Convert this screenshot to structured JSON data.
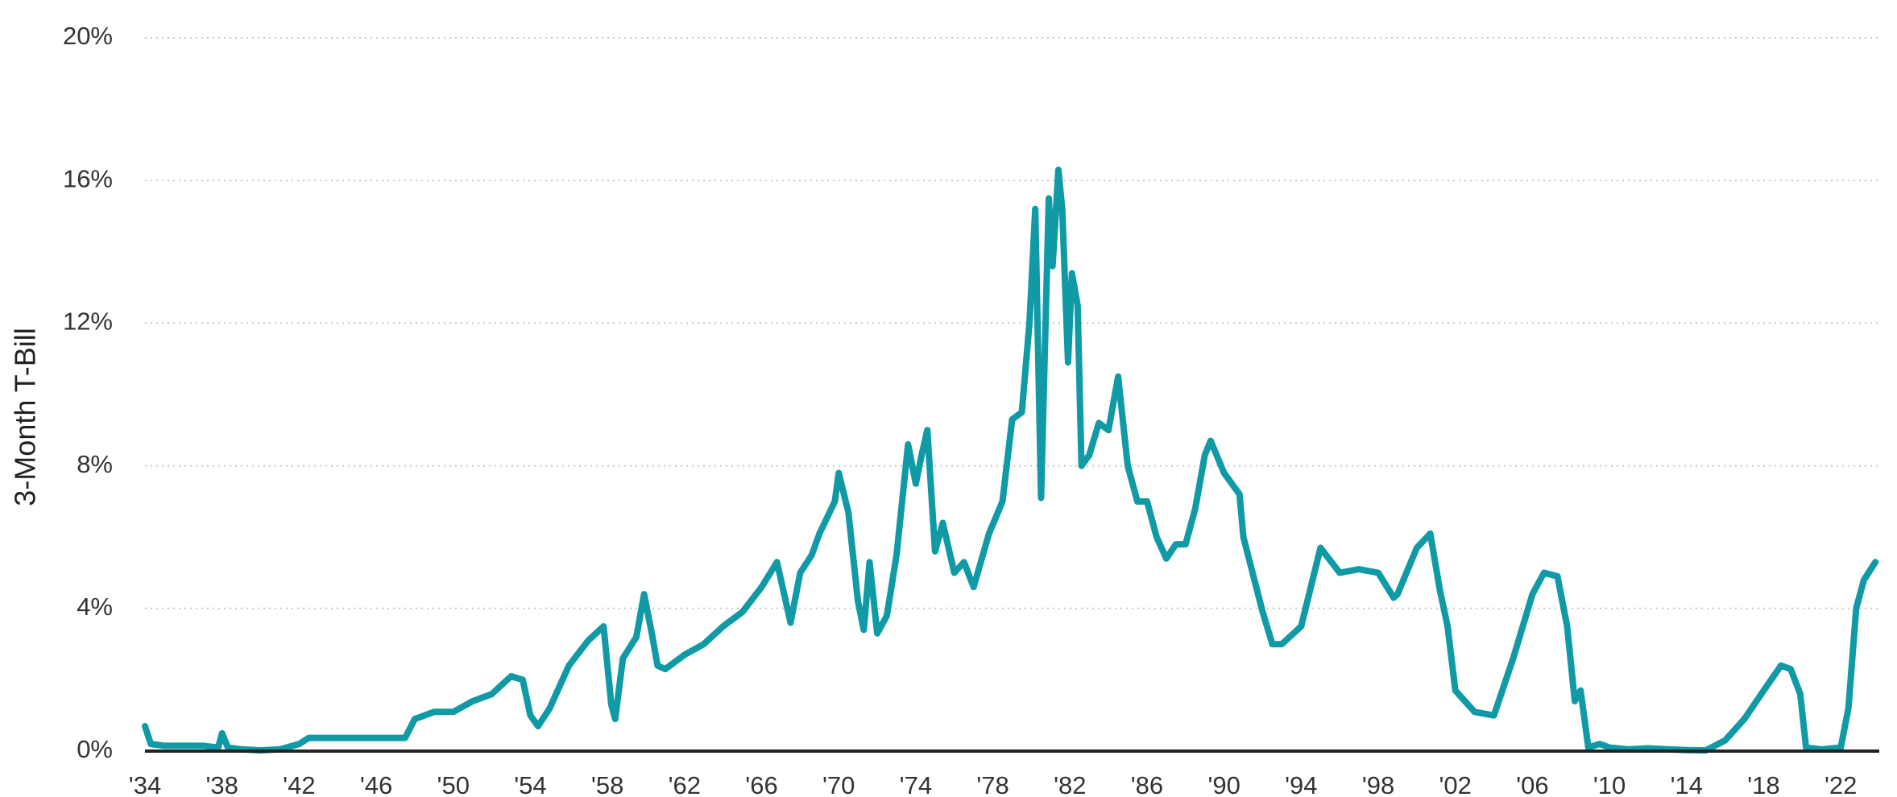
{
  "chart_data": {
    "type": "line",
    "y_label": "3-Month T-Bill",
    "color": "#0f9aa6",
    "grid": true,
    "xlim": [
      1934,
      2024
    ],
    "ylim": [
      0,
      20
    ],
    "yticks": [
      {
        "value": 0,
        "label": "0%"
      },
      {
        "value": 4,
        "label": "4%"
      },
      {
        "value": 8,
        "label": "8%"
      },
      {
        "value": 12,
        "label": "12%"
      },
      {
        "value": 16,
        "label": "16%"
      },
      {
        "value": 20,
        "label": "20%"
      }
    ],
    "xticks": [
      {
        "value": 1934,
        "label": "'34"
      },
      {
        "value": 1938,
        "label": "'38"
      },
      {
        "value": 1942,
        "label": "'42"
      },
      {
        "value": 1946,
        "label": "'46"
      },
      {
        "value": 1950,
        "label": "'50"
      },
      {
        "value": 1954,
        "label": "'54"
      },
      {
        "value": 1958,
        "label": "'58"
      },
      {
        "value": 1962,
        "label": "'62"
      },
      {
        "value": 1966,
        "label": "'66"
      },
      {
        "value": 1970,
        "label": "'70"
      },
      {
        "value": 1974,
        "label": "'74"
      },
      {
        "value": 1978,
        "label": "'78"
      },
      {
        "value": 1982,
        "label": "'82"
      },
      {
        "value": 1986,
        "label": "'86"
      },
      {
        "value": 1990,
        "label": "'90"
      },
      {
        "value": 1994,
        "label": "'94"
      },
      {
        "value": 1998,
        "label": "'98"
      },
      {
        "value": 2002,
        "label": "'02"
      },
      {
        "value": 2006,
        "label": "'06"
      },
      {
        "value": 2010,
        "label": "'10"
      },
      {
        "value": 2014,
        "label": "'14"
      },
      {
        "value": 2018,
        "label": "'18"
      },
      {
        "value": 2022,
        "label": "'22"
      }
    ],
    "x": [
      1934.0,
      1934.3,
      1935,
      1936,
      1937,
      1937.8,
      1938,
      1938.3,
      1939,
      1940,
      1941,
      1942,
      1942.5,
      1947.5,
      1948,
      1948.5,
      1949,
      1950,
      1951,
      1952,
      1953,
      1953.6,
      1954,
      1954.4,
      1955,
      1956,
      1957,
      1957.8,
      1958.2,
      1958.4,
      1958.8,
      1959.5,
      1959.9,
      1960.3,
      1960.6,
      1961,
      1962,
      1963,
      1964,
      1965,
      1966,
      1966.8,
      1967.5,
      1968,
      1968.6,
      1969,
      1969.8,
      1970,
      1970.5,
      1971,
      1971.3,
      1971.6,
      1972,
      1972.5,
      1973,
      1973.6,
      1974,
      1974.3,
      1974.6,
      1975,
      1975.4,
      1976,
      1976.5,
      1977,
      1977.8,
      1978.5,
      1979,
      1979.5,
      1979.9,
      1980.2,
      1980.5,
      1980.9,
      1981.1,
      1981.4,
      1981.6,
      1981.9,
      1982.1,
      1982.4,
      1982.6,
      1983,
      1983.5,
      1984,
      1984.5,
      1985,
      1985.5,
      1986,
      1986.5,
      1987,
      1987.5,
      1988,
      1988.5,
      1989,
      1989.3,
      1990,
      1990.8,
      1991,
      1992,
      1992.5,
      1993,
      1994,
      1995,
      1996,
      1997,
      1998,
      1998.8,
      1999,
      2000,
      2000.7,
      2001.2,
      2001.6,
      2002,
      2003,
      2004,
      2005,
      2006,
      2006.6,
      2007.3,
      2007.8,
      2008.2,
      2008.5,
      2008.9,
      2009.5,
      2010,
      2011,
      2012,
      2013,
      2014,
      2015,
      2016,
      2017,
      2018,
      2018.9,
      2019.4,
      2019.9,
      2020.2,
      2021,
      2022,
      2022.4,
      2022.8,
      2023.2,
      2023.8
    ],
    "values": [
      0.7,
      0.2,
      0.15,
      0.15,
      0.15,
      0.1,
      0.5,
      0.1,
      0.05,
      0.02,
      0.05,
      0.2,
      0.37,
      0.37,
      0.9,
      1.0,
      1.1,
      1.1,
      1.4,
      1.6,
      2.1,
      2.0,
      1.0,
      0.7,
      1.2,
      2.4,
      3.1,
      3.5,
      1.3,
      0.9,
      2.6,
      3.2,
      4.4,
      3.3,
      2.4,
      2.3,
      2.7,
      3.0,
      3.5,
      3.9,
      4.6,
      5.3,
      3.6,
      5.0,
      5.5,
      6.1,
      7.0,
      7.8,
      6.7,
      4.2,
      3.4,
      5.3,
      3.3,
      3.8,
      5.5,
      8.6,
      7.5,
      8.3,
      9.0,
      5.6,
      6.4,
      5.0,
      5.3,
      4.6,
      6.1,
      7.0,
      9.3,
      9.5,
      12.0,
      15.2,
      7.1,
      15.5,
      13.6,
      16.3,
      15.2,
      10.9,
      13.4,
      12.5,
      8.0,
      8.3,
      9.2,
      9.0,
      10.5,
      8.0,
      7.0,
      7.0,
      6.0,
      5.4,
      5.8,
      5.8,
      6.8,
      8.3,
      8.7,
      7.8,
      7.2,
      6.0,
      3.9,
      3.0,
      3.0,
      3.5,
      5.7,
      5.0,
      5.1,
      5.0,
      4.3,
      4.4,
      5.7,
      6.1,
      4.5,
      3.5,
      1.7,
      1.1,
      1.0,
      2.6,
      4.4,
      5.0,
      4.9,
      3.5,
      1.4,
      1.7,
      0.1,
      0.2,
      0.1,
      0.05,
      0.08,
      0.05,
      0.03,
      0.02,
      0.3,
      0.9,
      1.7,
      2.4,
      2.3,
      1.6,
      0.1,
      0.05,
      0.1,
      1.2,
      4.0,
      4.8,
      5.3
    ]
  }
}
